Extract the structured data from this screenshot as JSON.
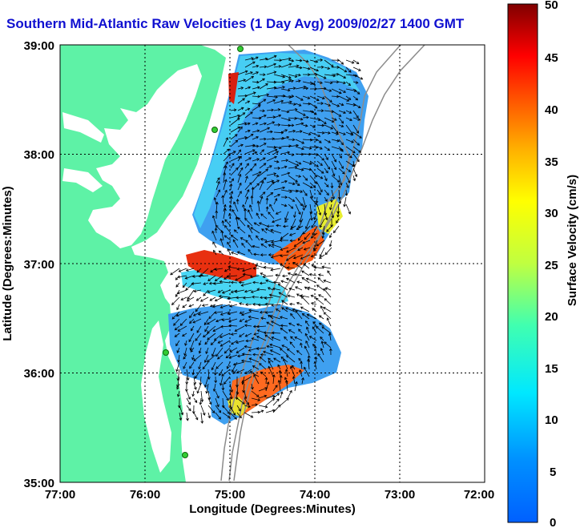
{
  "title": "Southern Mid-Atlantic Raw Velocities (1 Day Avg) 2009/02/27 1400 GMT",
  "xlabel": "Longitude (Degrees:Minutes)",
  "ylabel": "Latitude (Degrees:Minutes)",
  "x_ticks": [
    "77:00",
    "76:00",
    "75:00",
    "74:00",
    "73:00",
    "72:00"
  ],
  "y_ticks": [
    "39:00",
    "38:00",
    "37:00",
    "36:00",
    "35:00"
  ],
  "colorbar": {
    "label": "Surface Velocity (cm/s)",
    "ticks": [
      "50",
      "45",
      "40",
      "35",
      "30",
      "25",
      "20",
      "15",
      "10",
      "5",
      "0"
    ],
    "range": [
      0,
      50
    ],
    "units": "cm/s"
  },
  "colors": {
    "land": "#5ef2a6",
    "title": "#1010d0",
    "station": "#33cc33",
    "grid": "#000000"
  },
  "extent": {
    "lon": [
      -77,
      -72
    ],
    "lat": [
      35,
      39
    ]
  }
}
